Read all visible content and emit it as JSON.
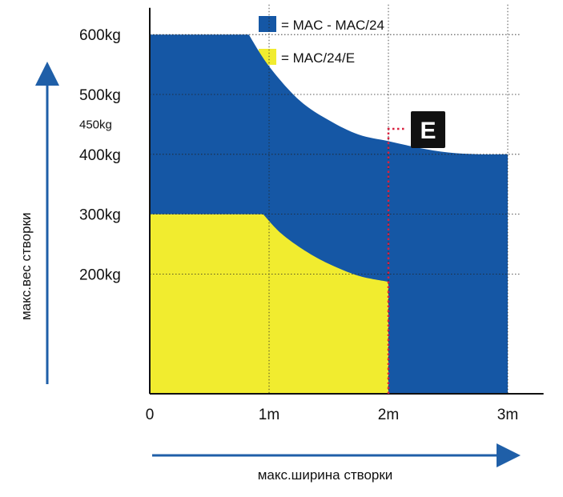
{
  "chart_data": {
    "type": "area",
    "ylabel": "макс.вес створки",
    "xlabel": "макс.ширина створки",
    "x_ticks": [
      {
        "value": 0,
        "label": "0"
      },
      {
        "value": 1,
        "label": "1m"
      },
      {
        "value": 2,
        "label": "2m"
      },
      {
        "value": 3,
        "label": "3m"
      }
    ],
    "y_ticks": [
      {
        "value": 600,
        "label": "600kg"
      },
      {
        "value": 500,
        "label": "500kg"
      },
      {
        "value": 450,
        "label": "450kg",
        "minor": true
      },
      {
        "value": 400,
        "label": "400kg"
      },
      {
        "value": 300,
        "label": "300kg"
      },
      {
        "value": 200,
        "label": "200kg"
      }
    ],
    "xlim": [
      0,
      3.3
    ],
    "ylim": [
      0,
      650
    ],
    "grid": true,
    "legend_position": "top",
    "series": [
      {
        "name": "= MAC - MAC/24",
        "color": "#1557a5",
        "points": [
          [
            0,
            600
          ],
          [
            0.83,
            600
          ],
          [
            1.0,
            547
          ],
          [
            1.25,
            491
          ],
          [
            1.5,
            457
          ],
          [
            1.75,
            433
          ],
          [
            2.0,
            422
          ],
          [
            2.25,
            411
          ],
          [
            2.5,
            403
          ],
          [
            2.75,
            400
          ],
          [
            3.0,
            400
          ]
        ]
      },
      {
        "name": "= MAC/24/E",
        "color": "#f1ec2f",
        "points": [
          [
            0,
            300
          ],
          [
            0.95,
            300
          ],
          [
            1.1,
            268
          ],
          [
            1.3,
            239
          ],
          [
            1.5,
            217
          ],
          [
            1.75,
            197
          ],
          [
            2.0,
            187
          ]
        ]
      }
    ],
    "marker": {
      "label": "E",
      "x": 2.0,
      "line_color": "#d9203f",
      "badge_color": "#111111"
    }
  }
}
